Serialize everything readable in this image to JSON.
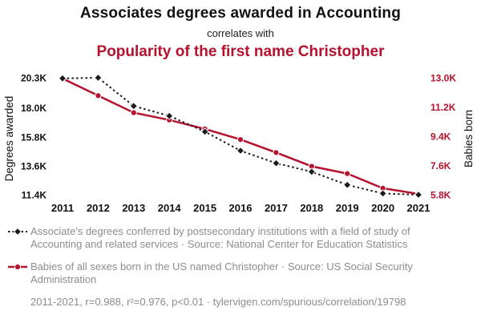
{
  "header": {
    "title": "Associates degrees awarded in Accounting",
    "subtitle": "correlates with",
    "title2": "Popularity of the first name Christopher"
  },
  "colors": {
    "accent_red": "#b5122e",
    "line_black": "#1a1a1a",
    "legend_gray": "#8d8d8d"
  },
  "chart_data": {
    "type": "line",
    "x": [
      2011,
      2012,
      2013,
      2014,
      2015,
      2016,
      2017,
      2018,
      2019,
      2020,
      2021
    ],
    "series": [
      {
        "name": "Associate's degrees in Accounting",
        "axis": "left",
        "color": "#1a1a1a",
        "style": "dashed",
        "marker": "diamond",
        "values": [
          20250,
          20300,
          18150,
          17400,
          16200,
          14750,
          13800,
          13150,
          12150,
          11500,
          11400
        ]
      },
      {
        "name": "Babies born named Christopher",
        "axis": "right",
        "color": "#b5122e",
        "style": "solid",
        "marker": "circle",
        "values": [
          12950,
          11900,
          10850,
          10400,
          9850,
          9200,
          8400,
          7550,
          7100,
          6200,
          5850
        ]
      }
    ],
    "left_axis": {
      "label": "Degrees awarded",
      "ticks": [
        "20.3K",
        "18.0K",
        "15.8K",
        "13.6K",
        "11.4K"
      ],
      "tick_values": [
        20300,
        18000,
        15800,
        13600,
        11400
      ],
      "range": [
        11400,
        20300
      ]
    },
    "right_axis": {
      "label": "Babies born",
      "ticks": [
        "13.0K",
        "11.2K",
        "9.4K",
        "7.6K",
        "5.8K"
      ],
      "tick_values": [
        13000,
        11200,
        9400,
        7600,
        5800
      ],
      "range": [
        5800,
        13000
      ]
    },
    "grid": false,
    "legend_position": "bottom"
  },
  "legend": {
    "item1": "Associate's degrees conferred by postsecondary institutions with a field of study of Accounting and related services · Source: National Center for Education Statistics",
    "item2": "Babies of all sexes born in the US named Christopher · Source: US Social Security Administration",
    "footer": "2011-2021, r=0.988, r²=0.976, p<0.01 · tylervigen.com/spurious/correlation/19798"
  }
}
